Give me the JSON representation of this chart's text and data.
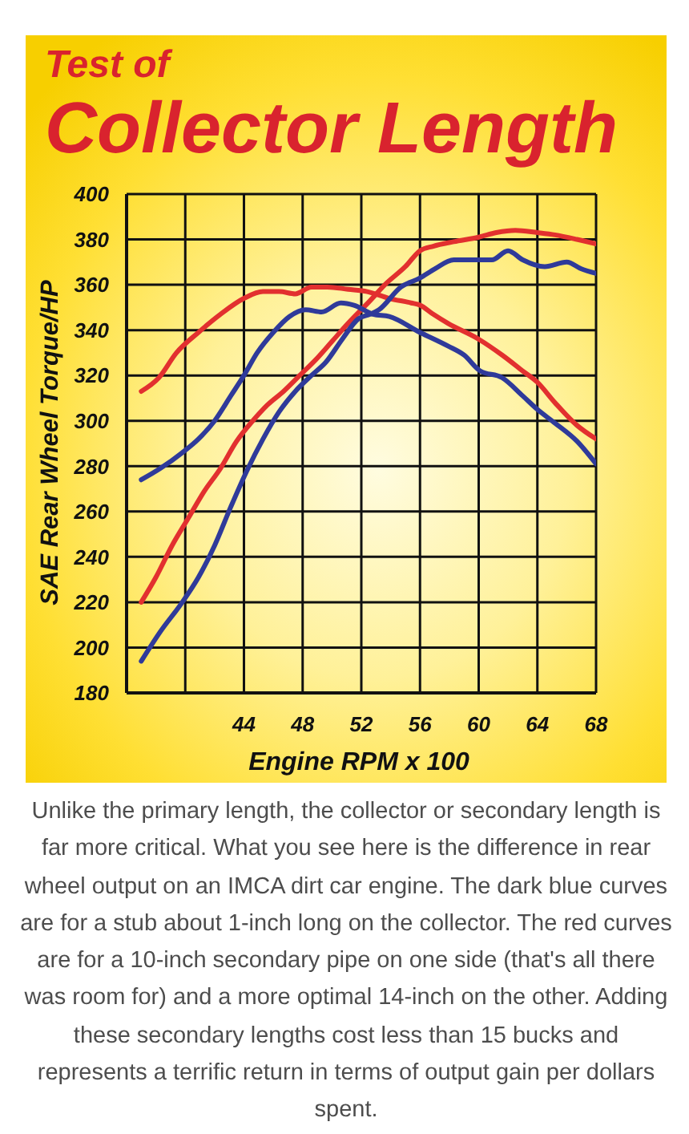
{
  "chart_data": {
    "type": "line",
    "title": "Test of",
    "subtitle": "Collector Length",
    "xlabel": "Engine RPM x 100",
    "ylabel": "SAE Rear Wheel Torque/HP",
    "annotations": [
      "Unlike the primary length, the collector or secondary length is far more critical. What you see here is the difference in rear wheel output on an IMCA dirt car engine. The dark blue curves are for a stub about 1-inch long on the collector. The red curves are for a 10-inch secondary pipe on one side (that's all there was room for) and a more optimal 14-inch on the other. Adding these secondary lengths cost less than 15 bucks and represents a terrific return in terms of output gain per dollars spent."
    ],
    "xlim": [
      36,
      68
    ],
    "xticks": [
      {
        "value": 36,
        "label": null
      },
      {
        "value": 40,
        "label": null
      },
      44,
      48,
      52,
      56,
      60,
      64,
      68
    ],
    "ylim": [
      180,
      400
    ],
    "yticks": [
      180,
      200,
      220,
      240,
      260,
      280,
      300,
      320,
      340,
      360,
      380,
      400
    ],
    "grid": true,
    "marker": "none",
    "line_style": "solid",
    "series": [
      {
        "color": "#e2302f",
        "x": [
          37,
          38.2,
          39.4,
          40.9,
          42.4,
          44,
          45.3,
          46.4,
          47.5,
          48.6,
          49.7,
          51.1,
          52.4,
          53.9,
          55.4,
          56,
          56.9,
          57.9,
          60,
          61.6,
          63,
          64,
          65.2,
          66.7,
          68
        ],
        "values": [
          313,
          319,
          330,
          339,
          347,
          354,
          357,
          357,
          356,
          359,
          359,
          358,
          357,
          354,
          352,
          351,
          347,
          343,
          336,
          329,
          322,
          317,
          308,
          298,
          292
        ]
      },
      {
        "color": "#e2302f",
        "x": [
          37,
          38,
          39.1,
          40.2,
          41.3,
          42.4,
          43.5,
          44.6,
          45.6,
          46.7,
          47.8,
          48.9,
          50,
          51.1,
          52.6,
          53.6,
          55,
          56,
          56.9,
          58.3,
          60,
          61.2,
          62.5,
          64,
          65.2,
          66.7,
          68
        ],
        "values": [
          220,
          231,
          245,
          257,
          269,
          279,
          291,
          300,
          307,
          313,
          320,
          327,
          335,
          343,
          353,
          360,
          368,
          375,
          377,
          379,
          381,
          383,
          384,
          383,
          382,
          380,
          378
        ]
      },
      {
        "color": "#2f3a9a",
        "x": [
          37,
          38.3,
          39.8,
          40.9,
          42,
          43.1,
          44,
          44.9,
          46,
          47.1,
          48.2,
          49.3,
          50.6,
          51.5,
          52.8,
          53.9,
          56,
          57.9,
          59,
          60.1,
          61.6,
          63,
          64,
          65.2,
          66.7,
          68
        ],
        "values": [
          274,
          279,
          286,
          292,
          300,
          311,
          320,
          330,
          339,
          346,
          349,
          348,
          352,
          351,
          347,
          346,
          339,
          333,
          329,
          322,
          319,
          311,
          305,
          299,
          291,
          281
        ]
      },
      {
        "color": "#2f3a9a",
        "x": [
          37,
          38.3,
          39.8,
          40.9,
          42,
          43.1,
          44.2,
          45.3,
          46.4,
          47.5,
          48.6,
          49.6,
          50.7,
          51.8,
          52.6,
          53.2,
          54.7,
          56,
          57,
          58.3,
          60,
          60.9,
          62,
          63,
          64.5,
          66,
          67,
          68
        ],
        "values": [
          194,
          207,
          220,
          231,
          245,
          262,
          278,
          292,
          304,
          313,
          320,
          326,
          336,
          345,
          347,
          349,
          359,
          363,
          367,
          371,
          371,
          371,
          375,
          371,
          368,
          370,
          367,
          365
        ]
      }
    ]
  }
}
